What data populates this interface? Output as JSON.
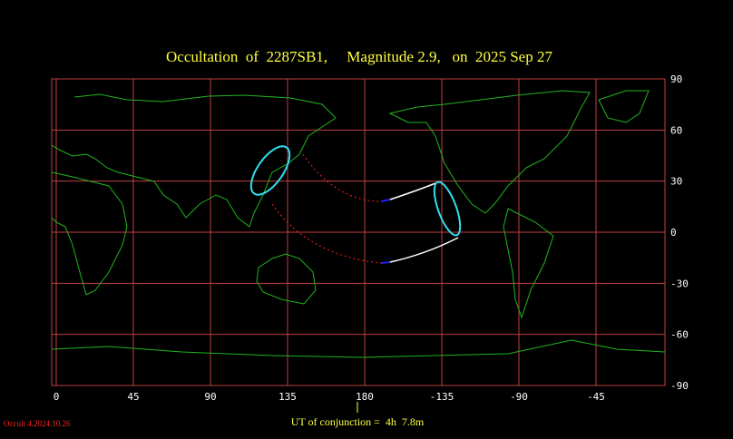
{
  "map": {
    "title": "Occultation  of  2287SB1,     Magnitude 2.9,   on  2025 Sep 27",
    "lon_ticks": [
      0,
      45,
      90,
      135,
      180,
      -135,
      -90,
      -45
    ],
    "lat_ticks": [
      90,
      60,
      30,
      0,
      -30,
      -60,
      -90
    ],
    "ut_label": "UT of conjunction =  4h  7.8m",
    "version": "Occult 4.2024.10.26"
  }
}
